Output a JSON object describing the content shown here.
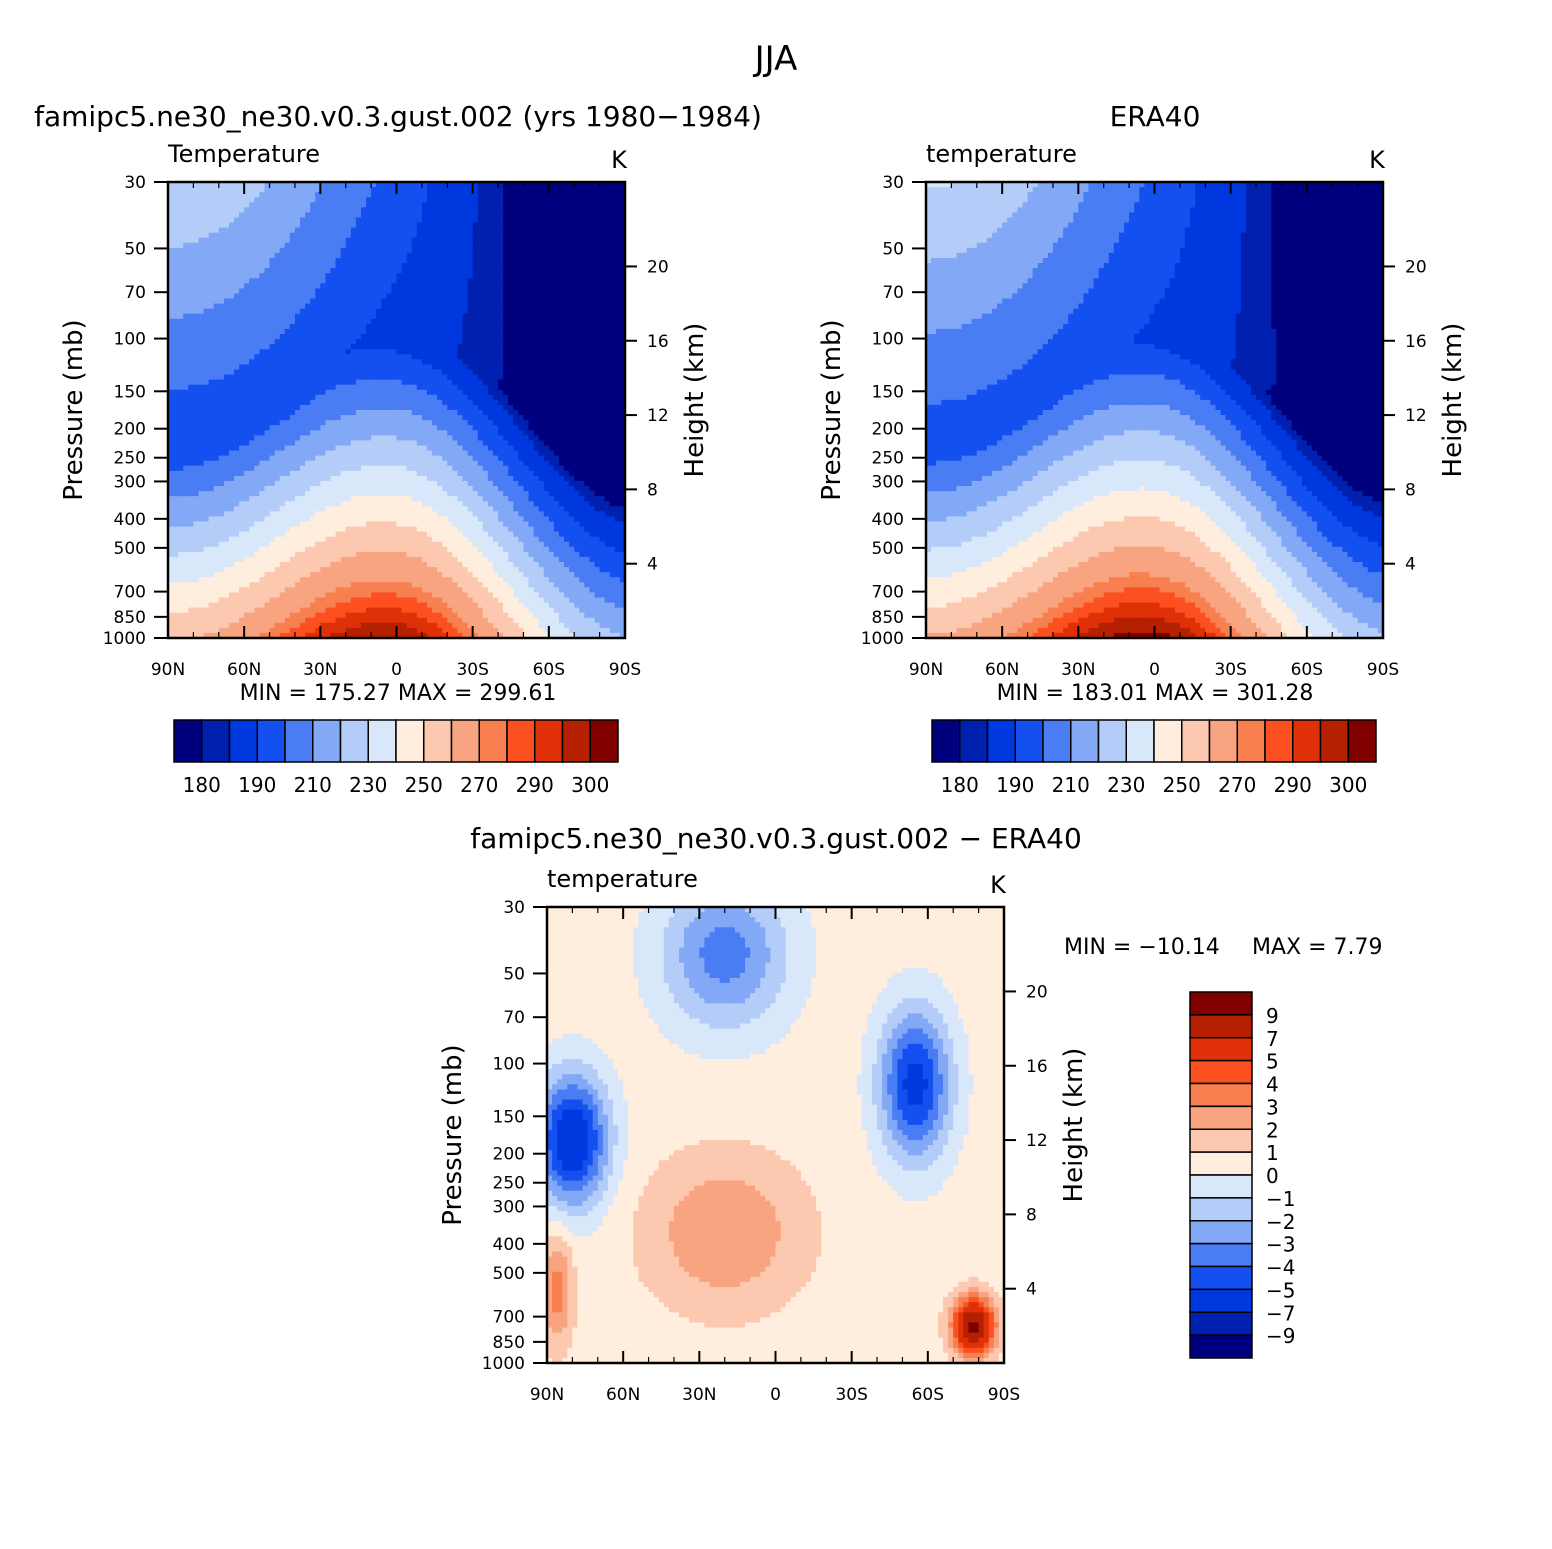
{
  "figure": {
    "main_title": "JJA"
  },
  "palette": {
    "full": [
      "#00007f",
      "#0020b0",
      "#0038e0",
      "#1450f0",
      "#4a7cf4",
      "#82a8f6",
      "#b4ccf8",
      "#d8e8fa",
      "#ffeedd",
      "#fcc8b0",
      "#f8a480",
      "#f88050",
      "#fc5020",
      "#e03008",
      "#b42000",
      "#800000"
    ]
  },
  "chart_data": [
    {
      "type": "heatmap",
      "panel": "model",
      "title": "famipc5.ne30_ne30.v0.3.gust.002 (yrs 1980−1984)",
      "variable_label": "Temperature",
      "units": "K",
      "ylabel": "Pressure (mb)",
      "ylabel_right": "Height (km)",
      "x_ticks": [
        "90N",
        "60N",
        "30N",
        "0",
        "30S",
        "60S",
        "90S"
      ],
      "y_ticks": [
        30,
        50,
        70,
        100,
        150,
        200,
        250,
        300,
        400,
        500,
        700,
        850,
        1000
      ],
      "height_ticks": [
        20,
        16,
        12,
        8,
        4
      ],
      "stats": "MIN = 175.27   MAX = 299.61",
      "min": 175.27,
      "max": 299.61,
      "colorbar_labels": [
        "180",
        "190",
        "210",
        "230",
        "250",
        "270",
        "290",
        "300"
      ],
      "field": "model"
    },
    {
      "type": "heatmap",
      "panel": "obs",
      "title": "ERA40",
      "variable_label": "temperature",
      "units": "K",
      "ylabel": "Pressure (mb)",
      "ylabel_right": "Height (km)",
      "x_ticks": [
        "90N",
        "60N",
        "30N",
        "0",
        "30S",
        "60S",
        "90S"
      ],
      "y_ticks": [
        30,
        50,
        70,
        100,
        150,
        200,
        250,
        300,
        400,
        500,
        700,
        850,
        1000
      ],
      "height_ticks": [
        20,
        16,
        12,
        8,
        4
      ],
      "stats": "MIN = 183.01   MAX = 301.28",
      "min": 183.01,
      "max": 301.28,
      "colorbar_labels": [
        "180",
        "190",
        "210",
        "230",
        "250",
        "270",
        "290",
        "300"
      ],
      "field": "obs"
    },
    {
      "type": "heatmap",
      "panel": "diff",
      "title": "famipc5.ne30_ne30.v0.3.gust.002 − ERA40",
      "variable_label": "temperature",
      "units": "K",
      "ylabel": "Pressure (mb)",
      "ylabel_right": "Height (km)",
      "x_ticks": [
        "90N",
        "60N",
        "30N",
        "0",
        "30S",
        "60S",
        "90S"
      ],
      "y_ticks": [
        30,
        50,
        70,
        100,
        150,
        200,
        250,
        300,
        400,
        500,
        700,
        850,
        1000
      ],
      "height_ticks": [
        20,
        16,
        12,
        8,
        4
      ],
      "stats_min": "MIN = −10.14",
      "stats_max": "MAX =    7.79",
      "min": -10.14,
      "max": 7.79,
      "colorbar_labels": [
        "9",
        "7",
        "5",
        "4",
        "3",
        "2",
        "1",
        "0",
        "−1",
        "−2",
        "−3",
        "−4",
        "−5",
        "−7",
        "−9"
      ],
      "field": "diff"
    }
  ]
}
